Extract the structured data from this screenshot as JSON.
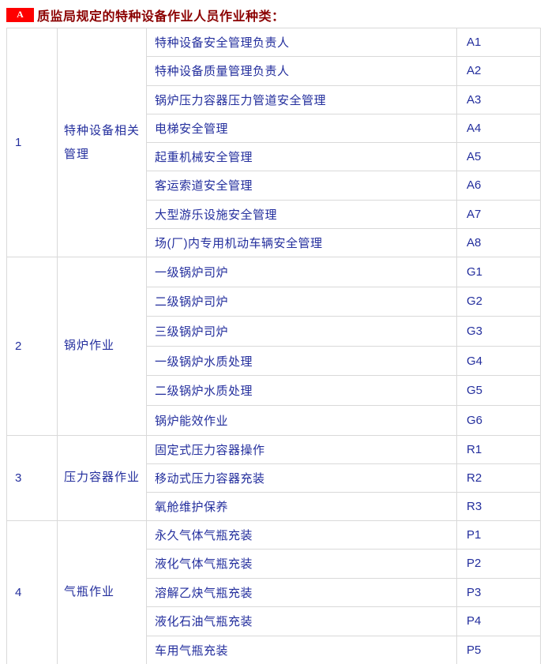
{
  "header": {
    "badge": "A",
    "title": "质监局规定的特种设备作业人员作业种类："
  },
  "colors": {
    "badge_bg": "#fe0000",
    "badge_fg": "#ffffff",
    "title_color": "#8b0000",
    "text_color": "#232e9d",
    "code_color": "#1d49be",
    "border_color": "#d9d9d9"
  },
  "table": {
    "sections": [
      {
        "no": "1",
        "category": "特种设备相关管理",
        "items": [
          {
            "name": "特种设备安全管理负责人",
            "code": "A1"
          },
          {
            "name": "特种设备质量管理负责人",
            "code": "A2"
          },
          {
            "name": "锅炉压力容器压力管道安全管理",
            "code": "A3"
          },
          {
            "name": "电梯安全管理",
            "code": "A4"
          },
          {
            "name": "起重机械安全管理",
            "code": "A5"
          },
          {
            "name": "客运索道安全管理",
            "code": "A6"
          },
          {
            "name": "大型游乐设施安全管理",
            "code": "A7"
          },
          {
            "name": "场(厂)内专用机动车辆安全管理",
            "code": "A8"
          }
        ]
      },
      {
        "no": "2",
        "category": "锅炉作业",
        "items": [
          {
            "name": "一级锅炉司炉",
            "code": "G1"
          },
          {
            "name": "二级锅炉司炉",
            "code": "G2"
          },
          {
            "name": "三级锅炉司炉",
            "code": "G3"
          },
          {
            "name": "一级锅炉水质处理",
            "code": "G4"
          },
          {
            "name": "二级锅炉水质处理",
            "code": "G5"
          },
          {
            "name": "锅炉能效作业",
            "code": "G6"
          }
        ]
      },
      {
        "no": "3",
        "category": "压力容器作业",
        "items": [
          {
            "name": "固定式压力容器操作",
            "code": "R1"
          },
          {
            "name": "移动式压力容器充装",
            "code": "R2"
          },
          {
            "name": "氧舱维护保养",
            "code": "R3"
          }
        ]
      },
      {
        "no": "4",
        "category": "气瓶作业",
        "items": [
          {
            "name": "永久气体气瓶充装",
            "code": "P1"
          },
          {
            "name": "液化气体气瓶充装",
            "code": "P2"
          },
          {
            "name": "溶解乙炔气瓶充装",
            "code": "P3"
          },
          {
            "name": "液化石油气瓶充装",
            "code": "P4"
          },
          {
            "name": "车用气瓶充装",
            "code": "P5"
          }
        ]
      }
    ]
  }
}
